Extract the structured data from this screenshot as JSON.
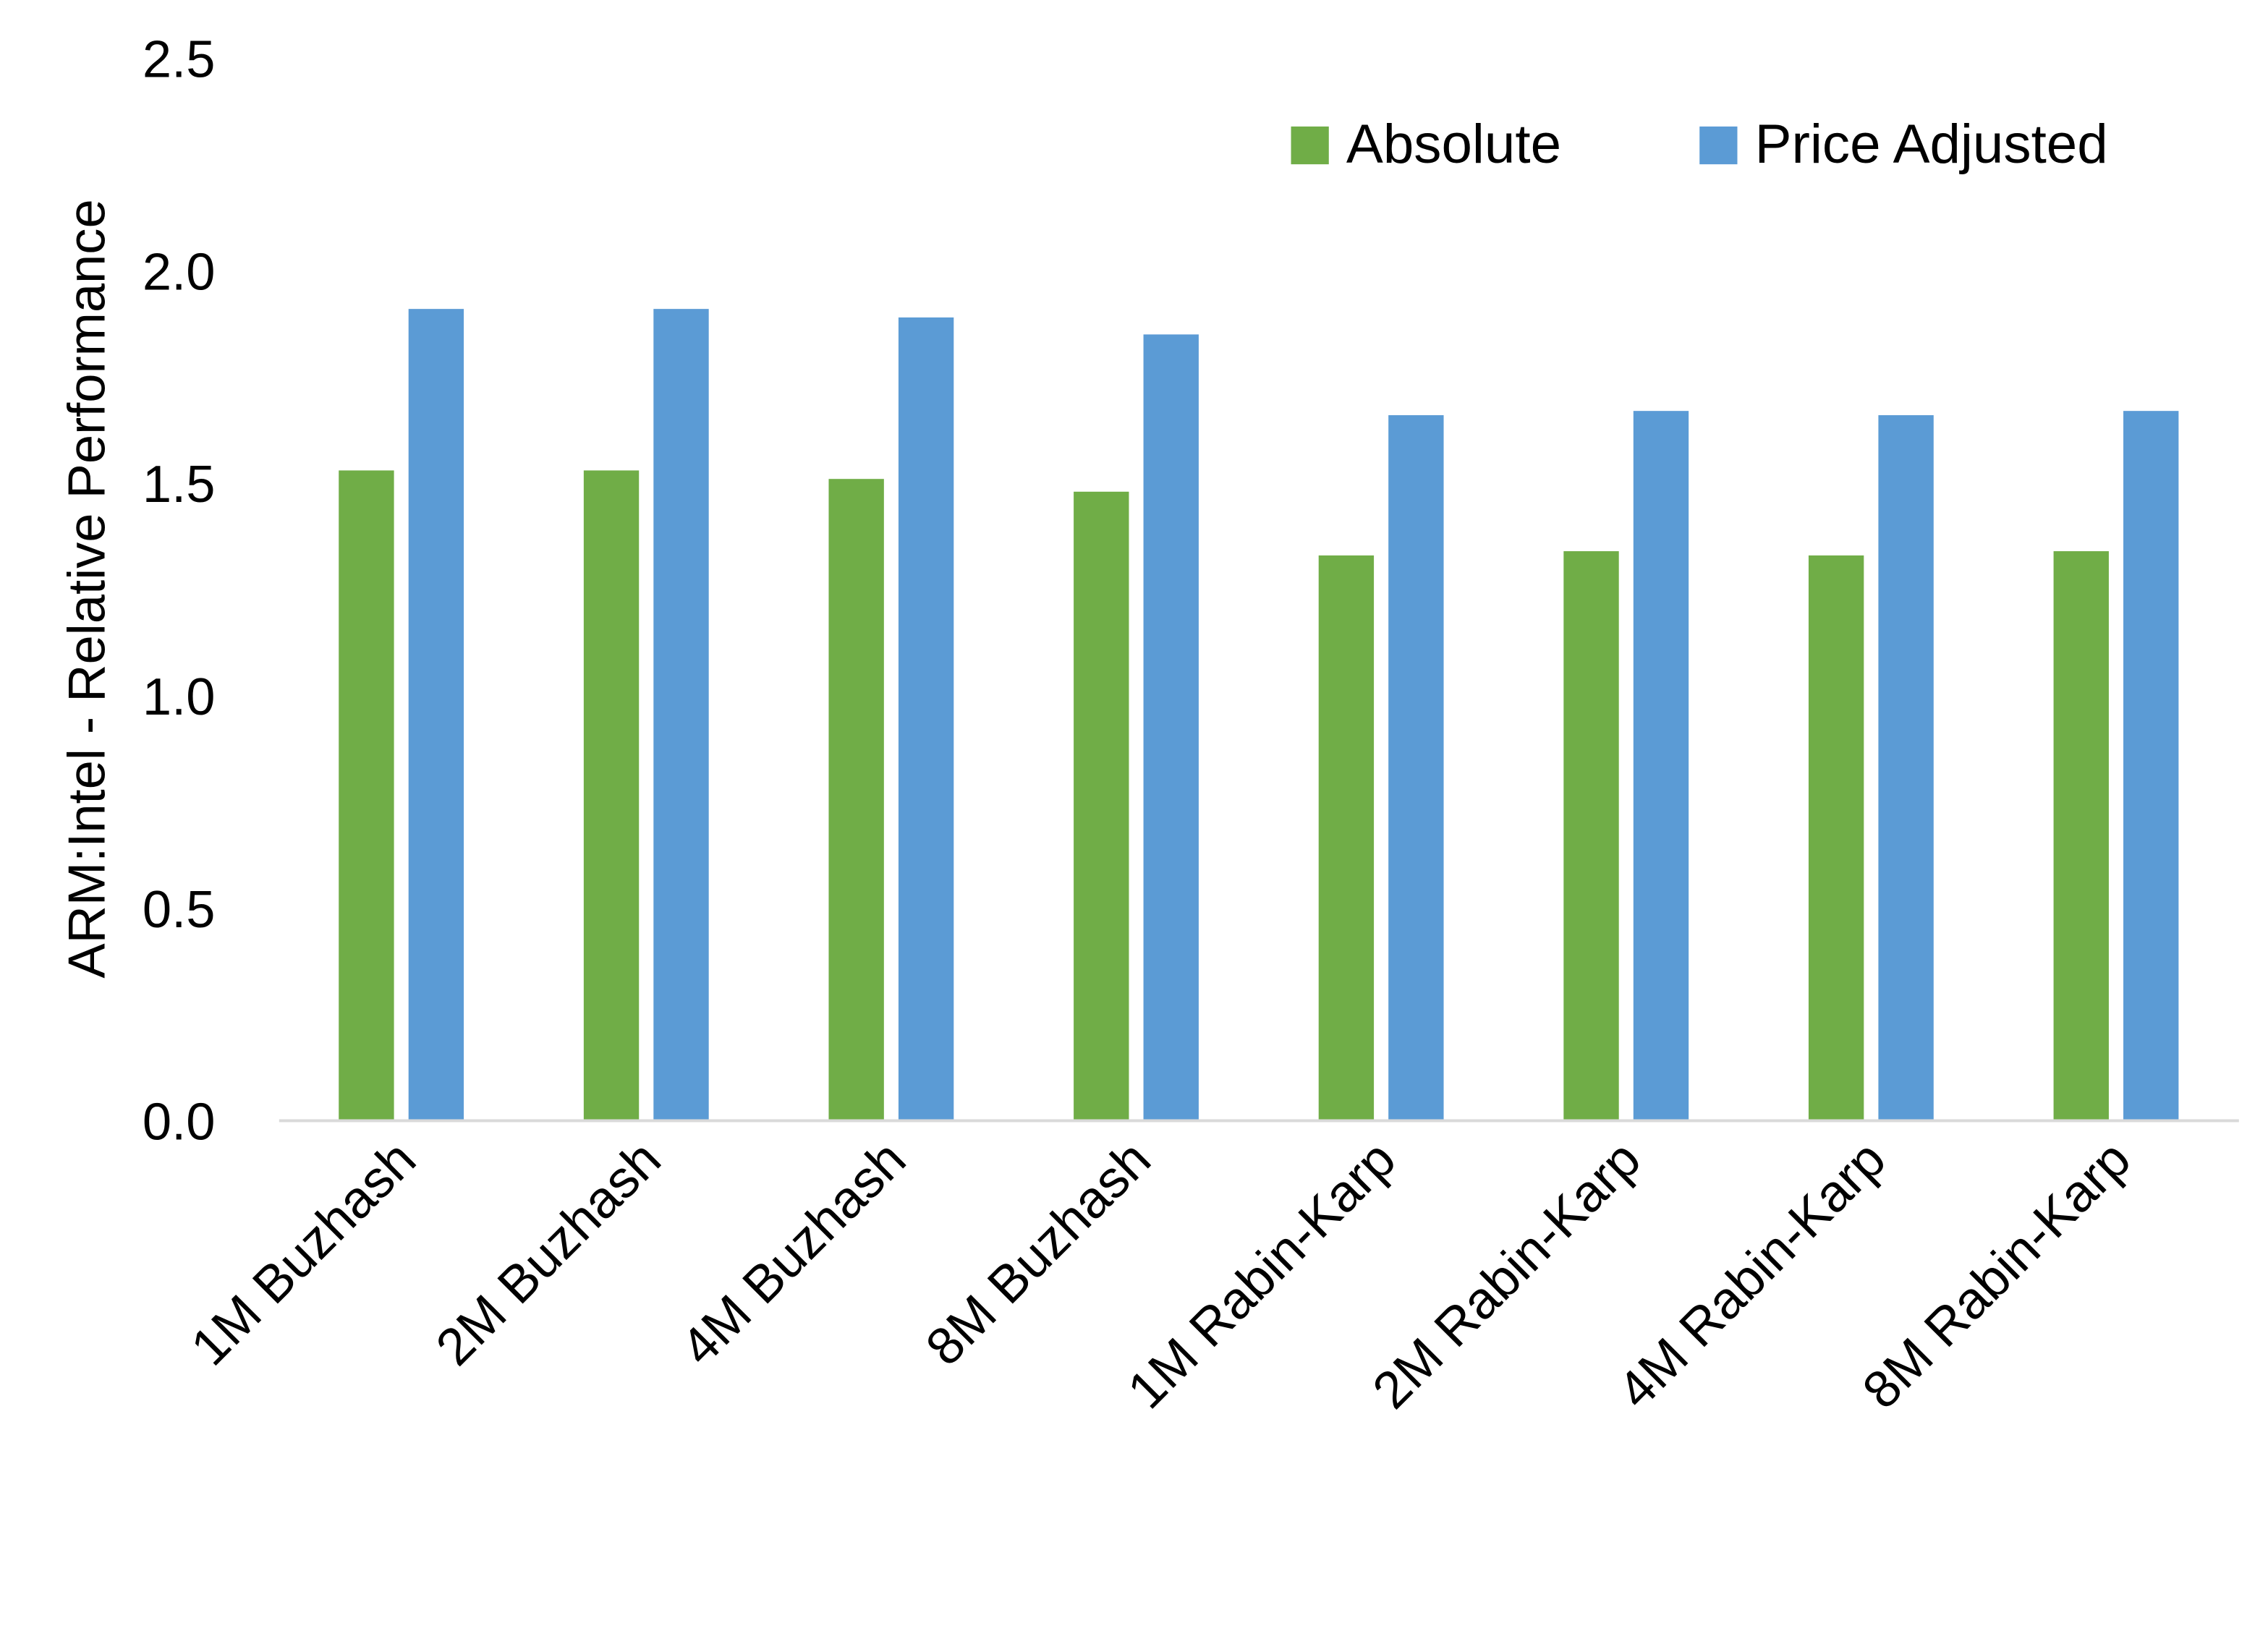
{
  "chart_data": {
    "type": "bar",
    "title": "",
    "xlabel": "",
    "ylabel": "ARM:Intel - Relative Performance",
    "ylim": [
      0,
      2.5
    ],
    "yticks": [
      "0.0",
      "0.5",
      "1.0",
      "1.5",
      "2.0",
      "2.5"
    ],
    "grid": false,
    "legend_position": "top-right",
    "categories": [
      "1M Buzhash",
      "2M Buzhash",
      "4M Buzhash",
      "8M Buzhash",
      "1M Rabin-Karp",
      "2M Rabin-Karp",
      "4M Rabin-Karp",
      "8M Rabin-Karp"
    ],
    "series": [
      {
        "name": "Absolute",
        "color": "#70ad47",
        "values": [
          1.53,
          1.53,
          1.51,
          1.48,
          1.33,
          1.34,
          1.33,
          1.34
        ]
      },
      {
        "name": "Price Adjusted",
        "color": "#5b9bd5",
        "values": [
          1.91,
          1.91,
          1.89,
          1.85,
          1.66,
          1.67,
          1.66,
          1.67
        ]
      }
    ]
  }
}
